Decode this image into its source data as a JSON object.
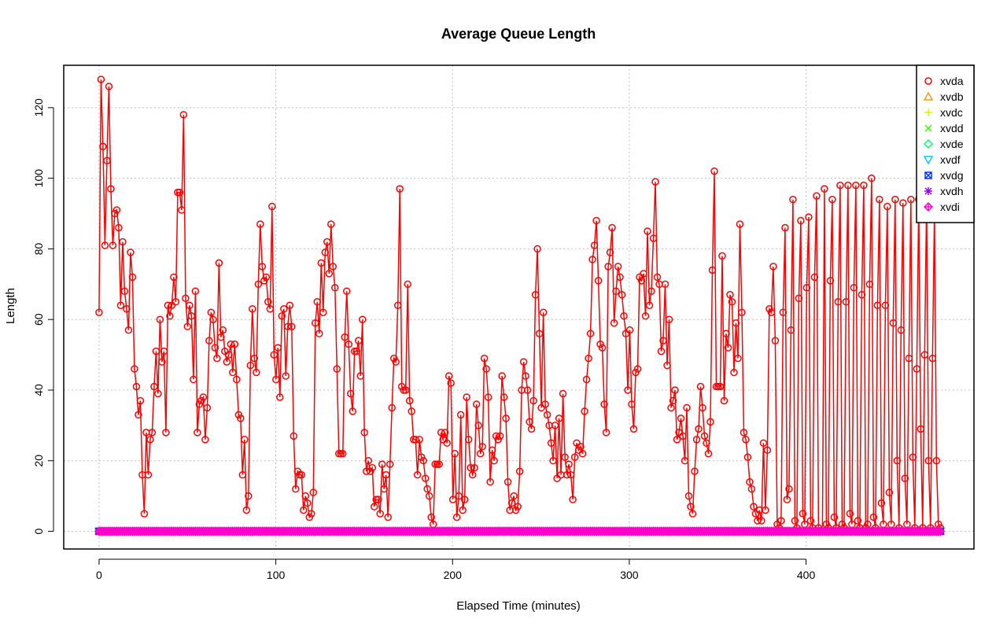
{
  "chart_data": {
    "type": "line",
    "title": "Average Queue Length",
    "xlabel": "Elapsed Time (minutes)",
    "ylabel": "Length",
    "xlim": [
      -20,
      495
    ],
    "ylim": [
      -5,
      132
    ],
    "x_ticks": [
      0,
      100,
      200,
      300,
      400
    ],
    "y_ticks": [
      0,
      20,
      40,
      60,
      80,
      100,
      120
    ],
    "grid": true,
    "legend_position": "top-right",
    "colors": {
      "xvda": "#ff0000",
      "xvdb": "#ff9900",
      "xvdc": "#ccff00",
      "xvdd": "#33ff00",
      "xvde": "#00ff66",
      "xvdf": "#00ccff",
      "xvdg": "#0033ff",
      "xvdh": "#9900ff",
      "xvdi": "#ff00cc"
    },
    "x_start": 0,
    "x_end": 476,
    "series": [
      {
        "name": "xvda",
        "marker": "circle",
        "values": [
          62,
          128,
          109,
          81,
          105,
          126,
          97,
          81,
          90,
          91,
          86,
          64,
          82,
          68,
          63,
          57,
          79,
          72,
          46,
          41,
          33,
          37,
          16,
          5,
          28,
          16,
          26,
          28,
          41,
          51,
          39,
          60,
          48,
          51,
          28,
          64,
          61,
          64,
          72,
          65,
          96,
          96,
          91,
          118,
          66,
          58,
          64,
          61,
          43,
          68,
          28,
          36,
          37,
          38,
          26,
          35,
          54,
          62,
          60,
          52,
          49,
          76,
          55,
          57,
          51,
          48,
          50,
          53,
          45,
          53,
          43,
          33,
          32,
          16,
          26,
          6,
          10,
          47,
          63,
          49,
          45,
          70,
          87,
          75,
          71,
          72,
          65,
          63,
          92,
          50,
          43,
          52,
          38,
          61,
          63,
          44,
          58,
          64,
          58,
          27,
          12,
          17,
          16,
          16,
          6,
          10,
          8,
          4,
          5,
          11,
          59,
          65,
          56,
          76,
          62,
          79,
          82,
          73,
          87,
          75,
          69,
          46,
          22,
          22,
          22,
          55,
          68,
          53,
          39,
          34,
          51,
          51,
          54,
          44,
          60,
          28,
          17,
          20,
          17,
          18,
          7,
          9,
          9,
          5,
          19,
          12,
          16,
          4,
          19,
          35,
          49,
          48,
          64,
          97,
          41,
          40,
          40,
          70,
          37,
          34,
          26,
          26,
          16,
          26,
          21,
          20,
          15,
          12,
          10,
          4,
          2,
          19,
          19,
          19,
          28,
          26,
          28,
          25,
          44,
          42,
          9,
          22,
          4,
          10,
          33,
          6,
          9,
          38,
          26,
          18,
          16,
          18,
          36,
          30,
          22,
          24,
          49,
          46,
          38,
          14,
          23,
          20,
          27,
          26,
          27,
          44,
          38,
          32,
          14,
          6,
          8,
          10,
          6,
          7,
          17,
          40,
          48,
          44,
          40,
          31,
          29,
          37,
          67,
          80,
          56,
          35,
          62,
          36,
          33,
          30,
          25,
          20,
          30,
          15,
          32,
          16,
          39,
          21,
          16,
          19,
          16,
          9,
          21,
          25,
          23,
          24,
          22,
          34,
          43,
          49,
          56,
          77,
          81,
          88,
          71,
          53,
          52,
          36,
          28,
          75,
          79,
          86,
          59,
          68,
          75,
          72,
          67,
          61,
          56,
          40,
          57,
          36,
          29,
          45,
          46,
          72,
          71,
          73,
          61,
          85,
          64,
          68,
          83,
          99,
          72,
          70,
          51,
          54,
          70,
          47,
          60,
          35,
          37,
          40,
          26,
          28,
          32,
          27,
          20,
          35,
          10,
          7,
          5,
          17,
          26,
          29,
          41,
          35,
          27,
          25,
          22,
          31,
          74,
          102,
          41,
          41,
          41,
          78,
          37,
          56,
          52,
          67,
          65,
          45,
          59,
          49,
          87,
          62,
          28,
          26,
          21,
          14,
          12,
          7,
          5,
          3,
          6,
          3,
          25,
          6,
          23,
          63,
          62,
          75,
          54,
          2,
          1,
          3,
          62,
          86,
          9,
          12,
          57,
          94,
          3,
          1,
          66,
          88,
          5,
          2,
          69,
          89,
          3,
          1,
          72,
          95,
          1,
          0,
          0,
          97,
          2,
          1,
          71,
          94,
          4,
          1,
          65,
          98,
          2,
          1,
          65,
          98,
          5,
          2,
          69,
          98,
          3,
          1,
          67,
          98,
          1,
          2,
          70,
          100,
          4,
          1,
          64,
          94,
          8,
          2,
          64,
          92,
          11,
          2,
          59,
          94,
          20,
          1,
          57,
          93,
          15,
          2,
          49,
          94,
          21,
          1,
          46,
          94,
          29,
          1,
          50,
          94,
          20,
          1,
          49,
          91,
          20,
          2,
          1
        ]
      },
      {
        "name": "xvdb",
        "marker": "triangle-up",
        "values": [
          0
        ]
      },
      {
        "name": "xvdc",
        "marker": "plus",
        "values": [
          0
        ]
      },
      {
        "name": "xvdd",
        "marker": "cross",
        "values": [
          0
        ]
      },
      {
        "name": "xvde",
        "marker": "diamond",
        "values": [
          0
        ]
      },
      {
        "name": "xvdf",
        "marker": "triangle-down",
        "values": [
          0
        ]
      },
      {
        "name": "xvdg",
        "marker": "square-cross",
        "values": [
          0
        ]
      },
      {
        "name": "xvdh",
        "marker": "asterisk",
        "values": [
          0
        ]
      },
      {
        "name": "xvdi",
        "marker": "diamond-plus",
        "values": [
          0
        ]
      }
    ]
  }
}
